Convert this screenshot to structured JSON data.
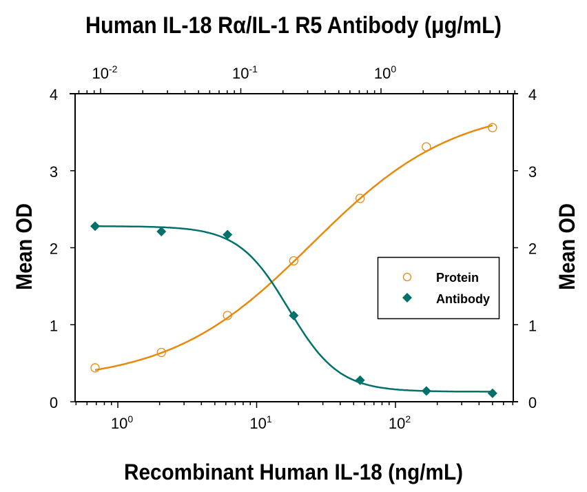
{
  "chart_data": {
    "type": "line",
    "title": "Human IL-18 Rα/IL-1 R5 Antibody (μg/mL)",
    "xlabel": "Recombinant Human IL-18 (ng/mL)",
    "ylabel": "Mean OD",
    "ylabel_right": "Mean OD",
    "xscale": "log",
    "xlim": [
      0.6,
      620
    ],
    "ylim": [
      0,
      4
    ],
    "grid": false,
    "legend_position": "center-right",
    "x_ticks": [
      {
        "base": "10",
        "exp": "0",
        "value": 1
      },
      {
        "base": "10",
        "exp": "1",
        "value": 10
      },
      {
        "base": "10",
        "exp": "2",
        "value": 100
      }
    ],
    "top_x_ticks": [
      {
        "base": "10",
        "exp": "-2",
        "value": 0.01
      },
      {
        "base": "10",
        "exp": "-1",
        "value": 0.1
      },
      {
        "base": "10",
        "exp": "0",
        "value": 1
      }
    ],
    "y_ticks": [
      "0",
      "1",
      "2",
      "3",
      "4"
    ],
    "x": [
      0.686,
      2.06,
      6.17,
      18.5,
      55.6,
      167,
      500
    ],
    "series": [
      {
        "name": "Protein",
        "marker": "open-circle",
        "color": "#E8890C",
        "values": [
          0.44,
          0.64,
          1.12,
          1.83,
          2.64,
          3.31,
          3.56
        ],
        "fit": {
          "model": "4PL",
          "bottom": 0.25,
          "top": 3.85,
          "ec50": 25,
          "hill": 0.85
        }
      },
      {
        "name": "Antibody",
        "marker": "filled-diamond",
        "color": "#00706A",
        "values": [
          2.28,
          2.21,
          2.17,
          1.12,
          0.28,
          0.14,
          0.11
        ],
        "fit": {
          "model": "4PL",
          "bottom": 0.13,
          "top": 2.28,
          "ec50": 17,
          "hill": -2.4
        }
      }
    ]
  },
  "legend": {
    "items": [
      {
        "label": "Protein",
        "marker": "open-circle-icon",
        "color": "#E8890C"
      },
      {
        "label": "Antibody",
        "marker": "filled-diamond-icon",
        "color": "#00706A"
      }
    ]
  }
}
